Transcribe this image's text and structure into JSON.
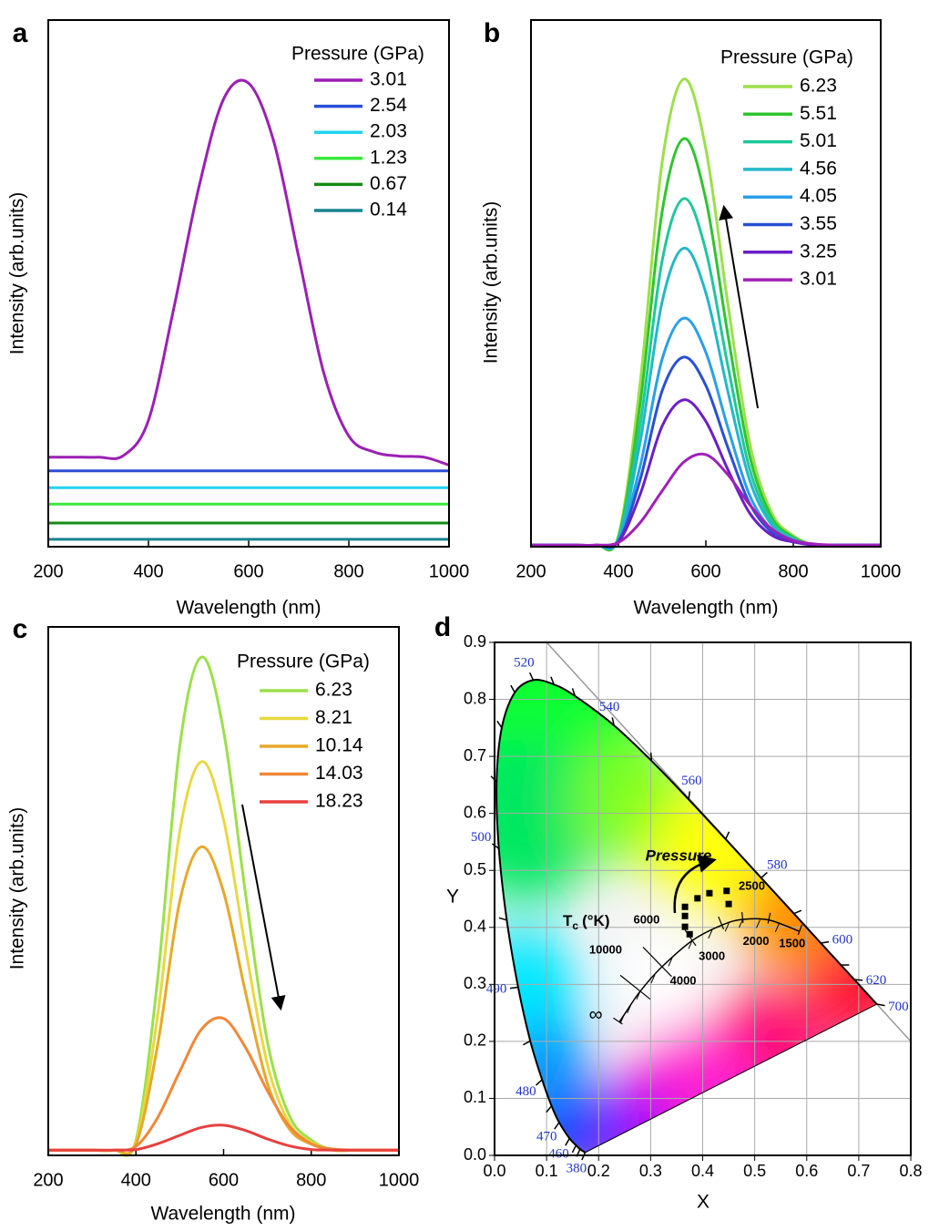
{
  "chart_data": [
    {
      "panel_label": "a",
      "type": "line",
      "xlabel": "Wavelength (nm)",
      "ylabel": "Intensity (arb.units)",
      "legend_title": "Pressure (GPa)",
      "x": [
        200,
        250,
        300,
        350,
        400,
        450,
        500,
        550,
        600,
        650,
        700,
        750,
        800,
        850,
        900,
        950,
        1000
      ],
      "xlim": [
        200,
        1000
      ],
      "xticks": [
        200,
        400,
        600,
        800,
        1000
      ],
      "ylim": [
        0,
        100
      ],
      "series": [
        {
          "name": "3.01",
          "color": "#9b1fb5",
          "values": [
            17,
            17,
            17,
            17.3,
            24,
            45,
            68,
            85,
            88,
            77,
            55,
            33,
            21,
            18,
            17.2,
            17,
            15.5
          ]
        },
        {
          "name": "2.54",
          "color": "#2a4fd6",
          "values": [
            14.4,
            14.4,
            14.4,
            14.4,
            14.4,
            14.4,
            14.4,
            14.4,
            14.4,
            14.4,
            14.4,
            14.4,
            14.4,
            14.4,
            14.4,
            14.4,
            14.4
          ]
        },
        {
          "name": "2.03",
          "color": "#22d3ee",
          "values": [
            11.2,
            11.2,
            11.2,
            11.2,
            11.2,
            11.2,
            11.2,
            11.2,
            11.2,
            11.2,
            11.2,
            11.2,
            11.2,
            11.2,
            11.2,
            11.2,
            11.2
          ]
        },
        {
          "name": "1.23",
          "color": "#3be83b",
          "values": [
            8.1,
            8.1,
            8.1,
            8.1,
            8.1,
            8.1,
            8.1,
            8.1,
            8.1,
            8.1,
            8.1,
            8.1,
            8.1,
            8.1,
            8.1,
            8.1,
            8.1
          ]
        },
        {
          "name": "0.67",
          "color": "#168a16",
          "values": [
            4.5,
            4.5,
            4.5,
            4.5,
            4.5,
            4.5,
            4.5,
            4.5,
            4.5,
            4.5,
            4.5,
            4.5,
            4.5,
            4.5,
            4.5,
            4.5,
            4.5
          ]
        },
        {
          "name": "0.14",
          "color": "#17848f",
          "values": [
            1.4,
            1.4,
            1.4,
            1.4,
            1.4,
            1.4,
            1.4,
            1.4,
            1.4,
            1.4,
            1.4,
            1.4,
            1.4,
            1.4,
            1.4,
            1.4,
            1.4
          ]
        }
      ]
    },
    {
      "panel_label": "b",
      "type": "line",
      "xlabel": "Wavelength (nm)",
      "ylabel": "Intensity (arb.units)",
      "legend_title": "Pressure (GPa)",
      "x": [
        200,
        250,
        300,
        350,
        400,
        450,
        500,
        550,
        600,
        650,
        700,
        750,
        800,
        850,
        900,
        950,
        1000
      ],
      "xlim": [
        200,
        1000
      ],
      "xticks": [
        200,
        400,
        600,
        800,
        1000
      ],
      "ylim": [
        0,
        100
      ],
      "series": [
        {
          "name": "6.23",
          "color": "#9be04a",
          "values": [
            0.3,
            0.3,
            0.3,
            0.3,
            2.1,
            31.3,
            73,
            88.8,
            75.5,
            46.3,
            19.8,
            6.5,
            2.1,
            0.3,
            0.3,
            0.3,
            0.3
          ]
        },
        {
          "name": "5.51",
          "color": "#2fc42f",
          "values": [
            0.3,
            0.3,
            0.3,
            0.3,
            1.8,
            27.3,
            63.6,
            77.5,
            65.9,
            40.4,
            17.3,
            5.7,
            1.8,
            0.3,
            0.3,
            0.3,
            0.3
          ]
        },
        {
          "name": "5.01",
          "color": "#1fc79a",
          "values": [
            0.3,
            0.3,
            0.3,
            0.3,
            1.6,
            23.3,
            54.3,
            66.1,
            56.2,
            34.5,
            14.8,
            4.9,
            1.6,
            0.3,
            0.3,
            0.3,
            0.3
          ]
        },
        {
          "name": "4.56",
          "color": "#22b8c8",
          "values": [
            0.3,
            0.3,
            0.3,
            0.3,
            1.4,
            20.0,
            46.5,
            56.7,
            48.2,
            29.6,
            12.7,
            4.2,
            1.4,
            0.3,
            0.3,
            0.3,
            0.3
          ]
        },
        {
          "name": "4.05",
          "color": "#2a9fe8",
          "values": [
            0.3,
            0.3,
            0.3,
            0.3,
            1.2,
            15.4,
            35.6,
            43.4,
            36.9,
            22.7,
            9.8,
            3.3,
            1.2,
            0.3,
            0.3,
            0.3,
            0.3
          ]
        },
        {
          "name": "3.55",
          "color": "#2a4fd6",
          "values": [
            0.3,
            0.3,
            0.3,
            0.3,
            1.0,
            12.8,
            29.6,
            36.0,
            30.6,
            18.9,
            8.2,
            2.8,
            1.0,
            0.3,
            0.3,
            0.3,
            0.3
          ]
        },
        {
          "name": "3.25",
          "color": "#6a1fc8",
          "values": [
            0.3,
            0.3,
            0.3,
            0.3,
            0.9,
            10.0,
            22.9,
            27.9,
            23.8,
            14.7,
            6.4,
            2.2,
            0.9,
            0.3,
            0.3,
            0.3,
            0.3
          ]
        },
        {
          "name": "3.01",
          "color": "#a020b8",
          "values": [
            0.3,
            0.3,
            0.3,
            0.3,
            0.8,
            4.6,
            10.6,
            16.1,
            17.5,
            13.7,
            8.0,
            3.4,
            1.2,
            0.5,
            0.3,
            0.3,
            0.3
          ]
        }
      ]
    },
    {
      "panel_label": "c",
      "type": "line",
      "xlabel": "Wavelength (nm)",
      "ylabel": "Intensity (arb.units)",
      "legend_title": "Pressure (GPa)",
      "x": [
        200,
        250,
        300,
        350,
        400,
        450,
        500,
        550,
        600,
        650,
        700,
        750,
        800,
        850,
        900,
        950,
        1000
      ],
      "xlim": [
        200,
        1000
      ],
      "xticks": [
        200,
        400,
        600,
        800,
        1000
      ],
      "ylim": [
        0,
        100
      ],
      "series": [
        {
          "name": "6.23",
          "color": "#9be04a",
          "values": [
            1,
            1,
            1,
            1,
            2.9,
            33.7,
            77.5,
            94.3,
            80.3,
            49.5,
            21.5,
            7.5,
            2.9,
            1,
            1,
            1,
            1
          ]
        },
        {
          "name": "8.21",
          "color": "#e8d840",
          "values": [
            1,
            1,
            1,
            1,
            2.5,
            26.7,
            61.3,
            74.5,
            63.5,
            39.2,
            17.2,
            6.1,
            2.5,
            1,
            1,
            1,
            1
          ]
        },
        {
          "name": "10.14",
          "color": "#e8a828",
          "values": [
            1,
            1,
            1,
            1,
            2.1,
            21.1,
            48.1,
            58.4,
            49.8,
            30.8,
            13.6,
            5.0,
            2.1,
            1,
            1,
            1,
            1
          ]
        },
        {
          "name": "14.03",
          "color": "#f08838",
          "values": [
            1,
            1,
            1,
            1,
            1.7,
            7.2,
            15.9,
            23.9,
            25.9,
            20.4,
            12.2,
            5.5,
            2.2,
            1.2,
            1,
            1,
            1
          ]
        },
        {
          "name": "18.23",
          "color": "#e84040",
          "values": [
            1,
            1,
            1,
            1,
            1.1,
            2.2,
            3.8,
            5.3,
            5.7,
            4.7,
            3.1,
            1.8,
            1.1,
            1,
            1,
            1,
            1
          ]
        }
      ]
    },
    {
      "panel_label": "d",
      "type": "scatter",
      "xlabel": "X",
      "ylabel": "Y",
      "xlim": [
        0,
        0.8
      ],
      "xticks": [
        {
          "value": 0,
          "label": "0.0"
        },
        0.1,
        0.2,
        0.3,
        0.4,
        0.5,
        0.6,
        0.7,
        0.8
      ],
      "ylim": [
        0,
        0.9
      ],
      "yticks": [
        {
          "value": 0,
          "label": "0.0"
        },
        0.1,
        0.2,
        0.3,
        0.4,
        0.5,
        0.6,
        0.7,
        0.8,
        0.9
      ],
      "grid": true,
      "color": "#000000",
      "x": [
        0.366,
        0.366,
        0.366,
        0.375,
        0.39,
        0.413,
        0.446,
        0.45
      ],
      "values": [
        0.436,
        0.42,
        0.401,
        0.388,
        0.451,
        0.46,
        0.464,
        0.441
      ],
      "spectral_locus": {
        "x": [
          0.1741,
          0.1644,
          0.1566,
          0.144,
          0.1241,
          0.1096,
          0.0913,
          0.0687,
          0.0454,
          0.0235,
          0.0082,
          0.0039,
          0.0139,
          0.0389,
          0.0743,
          0.1142,
          0.1547,
          0.2296,
          0.3016,
          0.3731,
          0.4441,
          0.5125,
          0.5752,
          0.627,
          0.6658,
          0.6915,
          0.7347
        ],
        "y": [
          0.005,
          0.0109,
          0.0177,
          0.0297,
          0.0578,
          0.0868,
          0.1327,
          0.2007,
          0.295,
          0.4127,
          0.5384,
          0.6548,
          0.7502,
          0.812,
          0.8338,
          0.8262,
          0.8059,
          0.7543,
          0.6923,
          0.6245,
          0.5547,
          0.4866,
          0.4242,
          0.3725,
          0.334,
          0.3083,
          0.2653
        ],
        "labels": [
          "380",
          null,
          null,
          "460",
          "470",
          null,
          "480",
          null,
          "490",
          null,
          "500",
          null,
          null,
          null,
          "520",
          null,
          null,
          "540",
          null,
          "560",
          null,
          "580",
          null,
          "600",
          null,
          "620",
          "700"
        ]
      },
      "planckian_locus": {
        "x": [
          0.24,
          0.253,
          0.28,
          0.322,
          0.38,
          0.437,
          0.477,
          0.527,
          0.586
        ],
        "y": [
          0.234,
          0.252,
          0.288,
          0.331,
          0.377,
          0.404,
          0.414,
          0.413,
          0.393
        ],
        "labels": [
          "∞",
          null,
          "10000",
          "6000",
          "4000",
          "3000",
          "2500",
          "2000",
          "1500"
        ]
      },
      "annotations": {
        "pressure": "Pressure",
        "tc_symbol": "T",
        "tc_subscript": "c",
        "tc_unit": "(°K)"
      }
    }
  ]
}
